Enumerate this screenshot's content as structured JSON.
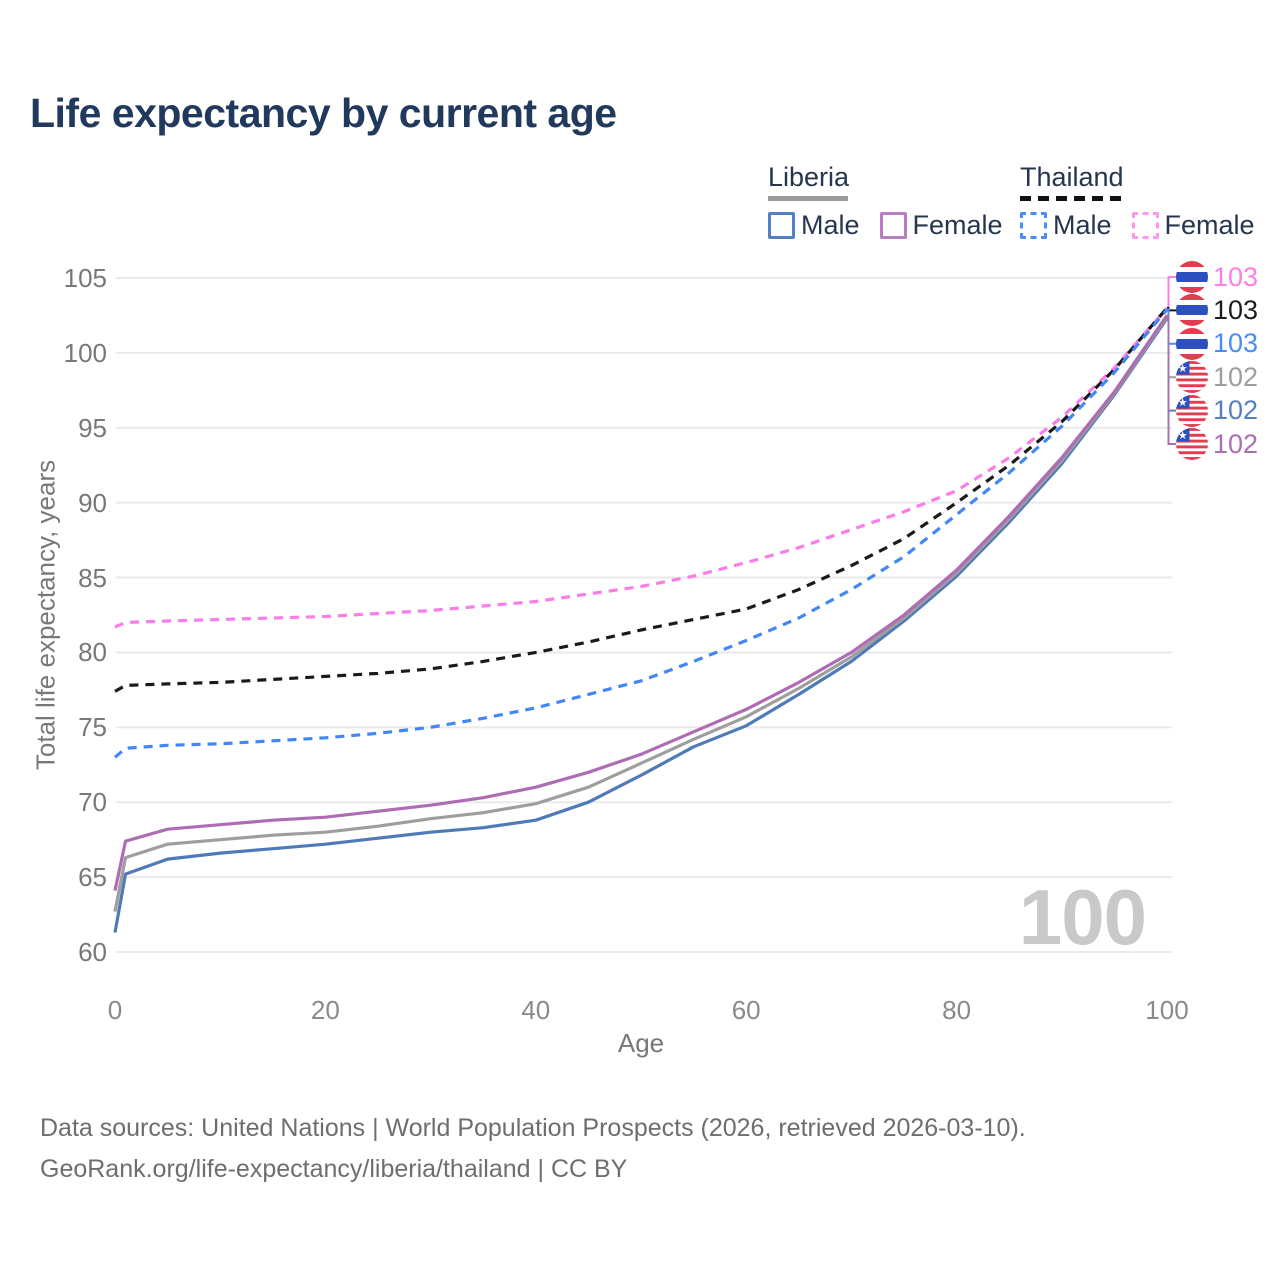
{
  "title": "Life expectancy by current age",
  "watermark": "100",
  "legend": {
    "groups": [
      {
        "label": "Liberia",
        "line_style": "solid",
        "underline_color": "#9a9a9a",
        "items": [
          {
            "label": "Male",
            "color": "#5580c0"
          },
          {
            "label": "Female",
            "color": "#b87fc0"
          }
        ]
      },
      {
        "label": "Thailand",
        "line_style": "dashed",
        "underline_color": "#111111",
        "items": [
          {
            "label": "Male",
            "color": "#4a8cf5"
          },
          {
            "label": "Female",
            "color": "#fb9aea"
          }
        ]
      }
    ]
  },
  "chart_data": {
    "type": "line",
    "title": "Life expectancy by current age",
    "xlabel": "Age",
    "ylabel": "Total life expectancy, years",
    "xlim": [
      0,
      100
    ],
    "ylim": [
      60,
      105
    ],
    "x_ticks": [
      0,
      20,
      40,
      60,
      80,
      100
    ],
    "y_ticks": [
      60,
      65,
      70,
      75,
      80,
      85,
      90,
      95,
      100,
      105
    ],
    "grid": true,
    "x": [
      0,
      1,
      5,
      10,
      15,
      20,
      25,
      30,
      35,
      40,
      45,
      50,
      55,
      60,
      65,
      70,
      75,
      80,
      85,
      90,
      95,
      100
    ],
    "series": [
      {
        "name": "Thailand Female",
        "country": "Thailand",
        "sex": "Female",
        "style": "dashed",
        "color": "#fb7de7",
        "values": [
          81.7,
          82.0,
          82.1,
          82.2,
          82.3,
          82.4,
          82.6,
          82.8,
          83.1,
          83.4,
          83.9,
          84.4,
          85.1,
          86.0,
          87.0,
          88.2,
          89.4,
          90.8,
          93.0,
          95.7,
          99.0,
          103.0
        ]
      },
      {
        "name": "Thailand Both sexes",
        "country": "Thailand",
        "sex": "Both",
        "style": "dashed",
        "color": "#1a1a1a",
        "values": [
          77.4,
          77.8,
          77.9,
          78.0,
          78.2,
          78.4,
          78.6,
          78.9,
          79.4,
          80.0,
          80.7,
          81.5,
          82.2,
          82.9,
          84.2,
          85.8,
          87.6,
          90.0,
          92.5,
          95.4,
          98.9,
          103.0
        ]
      },
      {
        "name": "Thailand Male",
        "country": "Thailand",
        "sex": "Male",
        "style": "dashed",
        "color": "#4287f5",
        "values": [
          73.0,
          73.6,
          73.8,
          73.9,
          74.1,
          74.3,
          74.6,
          75.0,
          75.6,
          76.3,
          77.2,
          78.1,
          79.4,
          80.8,
          82.3,
          84.2,
          86.4,
          89.2,
          92.0,
          95.1,
          98.7,
          102.9
        ]
      },
      {
        "name": "Liberia Male",
        "country": "Liberia",
        "sex": "Male",
        "style": "solid",
        "color": "#4f7ab8",
        "values": [
          61.3,
          65.2,
          66.2,
          66.6,
          66.9,
          67.2,
          67.6,
          68.0,
          68.3,
          68.8,
          70.0,
          71.8,
          73.7,
          75.1,
          77.2,
          79.4,
          82.1,
          85.1,
          88.7,
          92.6,
          97.2,
          102.3
        ]
      },
      {
        "name": "Liberia Both sexes",
        "country": "Liberia",
        "sex": "Both",
        "style": "solid",
        "color": "#9e9e9e",
        "values": [
          62.7,
          66.3,
          67.2,
          67.5,
          67.8,
          68.0,
          68.4,
          68.9,
          69.3,
          69.9,
          71.0,
          72.6,
          74.2,
          75.7,
          77.6,
          79.7,
          82.3,
          85.3,
          88.9,
          92.8,
          97.3,
          102.4
        ]
      },
      {
        "name": "Liberia Female",
        "country": "Liberia",
        "sex": "Female",
        "style": "solid",
        "color": "#ad6cb3",
        "values": [
          64.1,
          67.4,
          68.2,
          68.5,
          68.8,
          69.0,
          69.4,
          69.8,
          70.3,
          71.0,
          72.0,
          73.2,
          74.7,
          76.2,
          78.0,
          80.0,
          82.5,
          85.5,
          89.1,
          93.0,
          97.4,
          102.5
        ]
      }
    ]
  },
  "end_labels": [
    {
      "value": "103",
      "color": "#f97ee5",
      "flag": "thailand",
      "series": "Thailand Female"
    },
    {
      "value": "103",
      "color": "#1c1c1c",
      "flag": "thailand",
      "series": "Thailand Both sexes"
    },
    {
      "value": "103",
      "color": "#4a8cf5",
      "flag": "thailand",
      "series": "Thailand Male"
    },
    {
      "value": "102",
      "color": "#9e9e9e",
      "flag": "liberia",
      "series": "Liberia Both sexes"
    },
    {
      "value": "102",
      "color": "#5580c0",
      "flag": "liberia",
      "series": "Liberia Male"
    },
    {
      "value": "102",
      "color": "#aa6fb3",
      "flag": "liberia",
      "series": "Liberia Female"
    }
  ],
  "flag_colors": {
    "red": "#e23c4f",
    "blue": "#2d50c0",
    "white": "#ffffff"
  },
  "footer": {
    "line1": "Data sources: United Nations | World Population Prospects (2026, retrieved 2026-03-10).",
    "line2": "GeoRank.org/life-expectancy/liberia/thailand | CC BY"
  }
}
